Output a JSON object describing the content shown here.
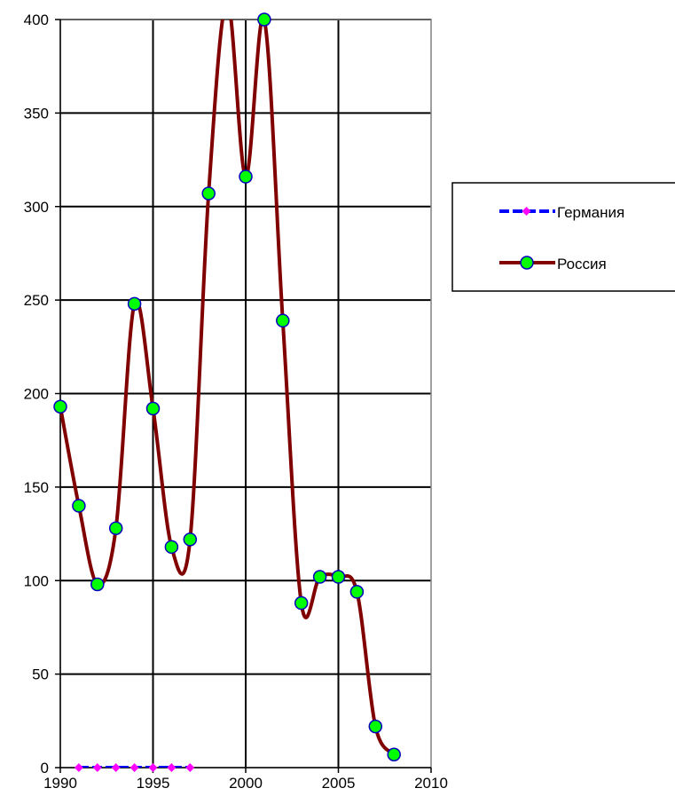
{
  "chart_data": {
    "type": "line",
    "title": "",
    "xlabel": "",
    "ylabel": "",
    "xlim": [
      1990,
      2010
    ],
    "ylim": [
      0,
      400
    ],
    "x_ticks": [
      "1990",
      "1995",
      "2000",
      "2005",
      "2010"
    ],
    "y_ticks": [
      "0",
      "50",
      "100",
      "150",
      "200",
      "250",
      "300",
      "350",
      "400"
    ],
    "grid": true,
    "legend_position": "right",
    "series": [
      {
        "name": "Германия",
        "color": "#0000ff",
        "marker_color": "#ff00ff",
        "x": [
          1991,
          1992,
          1993,
          1994,
          1995,
          1996,
          1997
        ],
        "y": [
          0,
          0,
          0,
          0,
          0,
          0,
          0
        ]
      },
      {
        "name": "Россия",
        "color": "#800000",
        "marker_color": "#00ff00",
        "x": [
          1990,
          1991,
          1992,
          1993,
          1994,
          1995,
          1996,
          1997,
          1998,
          1999,
          2000,
          2001,
          2002,
          2003,
          2004,
          2005,
          2006,
          2007,
          2008
        ],
        "y": [
          193,
          140,
          98,
          128,
          248,
          192,
          118,
          122,
          307,
          410,
          316,
          400,
          239,
          88,
          102,
          102,
          94,
          22,
          7
        ]
      }
    ]
  }
}
